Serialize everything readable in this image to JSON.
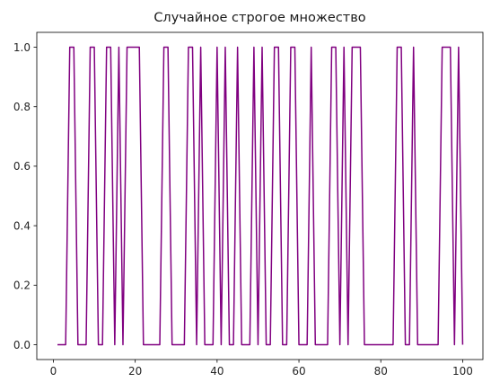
{
  "chart_data": {
    "type": "line",
    "title": "Случайное строгое множество",
    "xlabel": "",
    "ylabel": "",
    "xlim": [
      -4.05,
      104.95
    ],
    "ylim": [
      -0.05,
      1.05
    ],
    "x_ticks": [
      0,
      20,
      40,
      60,
      80,
      100
    ],
    "x_tick_labels": [
      "0",
      "20",
      "40",
      "60",
      "80",
      "100"
    ],
    "y_ticks": [
      0.0,
      0.2,
      0.4,
      0.6,
      0.8,
      1.0
    ],
    "y_tick_labels": [
      "0.0",
      "0.2",
      "0.4",
      "0.6",
      "0.8",
      "1.0"
    ],
    "grid": false,
    "legend": "none",
    "series": [
      {
        "color": "#800080",
        "x": [
          1,
          2,
          3,
          4,
          5,
          6,
          7,
          8,
          9,
          10,
          11,
          12,
          13,
          14,
          15,
          16,
          17,
          18,
          19,
          20,
          21,
          22,
          23,
          24,
          25,
          26,
          27,
          28,
          29,
          30,
          31,
          32,
          33,
          34,
          35,
          36,
          37,
          38,
          39,
          40,
          41,
          42,
          43,
          44,
          45,
          46,
          47,
          48,
          49,
          50,
          51,
          52,
          53,
          54,
          55,
          56,
          57,
          58,
          59,
          60,
          61,
          62,
          63,
          64,
          65,
          66,
          67,
          68,
          69,
          70,
          71,
          72,
          73,
          74,
          75,
          76,
          77,
          78,
          79,
          80,
          81,
          82,
          83,
          84,
          85,
          86,
          87,
          88,
          89,
          90,
          91,
          92,
          93,
          94,
          95,
          96,
          97,
          98,
          99,
          100
        ],
        "y": [
          0,
          0,
          0,
          1,
          1,
          0,
          0,
          0,
          1,
          1,
          0,
          0,
          1,
          1,
          0,
          1,
          0,
          1,
          1,
          1,
          1,
          0,
          0,
          0,
          0,
          0,
          1,
          1,
          0,
          0,
          0,
          0,
          1,
          1,
          0,
          1,
          0,
          0,
          0,
          1,
          0,
          1,
          0,
          0,
          1,
          0,
          0,
          0,
          1,
          0,
          1,
          0,
          0,
          1,
          1,
          0,
          0,
          1,
          1,
          0,
          0,
          0,
          1,
          0,
          0,
          0,
          0,
          1,
          1,
          0,
          1,
          0,
          1,
          1,
          1,
          0,
          0,
          0,
          0,
          0,
          0,
          0,
          0,
          1,
          1,
          0,
          0,
          1,
          0,
          0,
          0,
          0,
          0,
          0,
          1,
          1,
          1,
          0,
          1,
          0
        ]
      }
    ]
  }
}
